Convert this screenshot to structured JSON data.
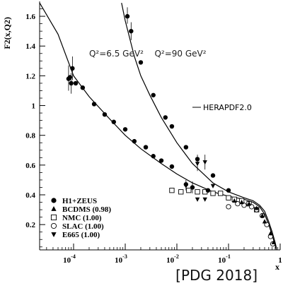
{
  "citation": "[PDG 2018]",
  "chart_data": {
    "type": "scatter",
    "ylabel": "F2(x,Q2)",
    "xlabel": "x",
    "x_scale": "log",
    "xlim": [
      2.2e-05,
      1.0
    ],
    "ylim": [
      0.03,
      1.7
    ],
    "x_ticks": [
      {
        "value": 0.0001,
        "base": "10",
        "exp": "-4"
      },
      {
        "value": 0.001,
        "base": "10",
        "exp": "-3"
      },
      {
        "value": 0.01,
        "base": "10",
        "exp": "-2"
      },
      {
        "value": 0.1,
        "base": "10",
        "exp": "-1"
      },
      {
        "value": 1,
        "base": "1",
        "exp": ""
      }
    ],
    "y_ticks": [
      0.2,
      0.4,
      0.6,
      0.8,
      1,
      1.2,
      1.4,
      1.6
    ],
    "y_tick_labels": [
      "0.2",
      "0.4",
      "0.6",
      "0.8",
      "1",
      "1.2",
      "1.4",
      "1.6"
    ],
    "annotations": [
      {
        "text": "Q²=6.5 GeV²",
        "x": 0.0002,
        "y": 1.33
      },
      {
        "text": "Q²=90 GeV²",
        "x": 0.0037,
        "y": 1.33
      }
    ],
    "curves": [
      {
        "name": "HERAPDF2.0",
        "legend_label": "HERAPDF2.0",
        "points": [
          [
            2.2e-05,
            1.69
          ],
          [
            5e-05,
            1.48
          ],
          [
            0.0001,
            1.2
          ],
          [
            0.0002,
            1.06
          ],
          [
            0.0005,
            0.91
          ],
          [
            0.001,
            0.8
          ],
          [
            0.002,
            0.71
          ],
          [
            0.005,
            0.61
          ],
          [
            0.01,
            0.54
          ],
          [
            0.02,
            0.48
          ],
          [
            0.05,
            0.42
          ],
          [
            0.1,
            0.39
          ],
          [
            0.2,
            0.37
          ],
          [
            0.3,
            0.35
          ],
          [
            0.4,
            0.32
          ],
          [
            0.5,
            0.27
          ],
          [
            0.6,
            0.2
          ],
          [
            0.7,
            0.13
          ],
          [
            0.8,
            0.06
          ],
          [
            0.85,
            0.03
          ]
        ]
      },
      {
        "name": "HERAPDF2.0",
        "legend_label": "",
        "points": [
          [
            0.00085,
            1.69
          ],
          [
            0.001,
            1.57
          ],
          [
            0.0015,
            1.33
          ],
          [
            0.002,
            1.2
          ],
          [
            0.003,
            1.07
          ],
          [
            0.005,
            0.92
          ],
          [
            0.01,
            0.75
          ],
          [
            0.02,
            0.61
          ],
          [
            0.05,
            0.48
          ],
          [
            0.1,
            0.42
          ],
          [
            0.2,
            0.38
          ],
          [
            0.3,
            0.36
          ],
          [
            0.4,
            0.33
          ],
          [
            0.5,
            0.29
          ],
          [
            0.6,
            0.22
          ],
          [
            0.7,
            0.15
          ],
          [
            0.8,
            0.08
          ],
          [
            0.85,
            0.04
          ]
        ]
      }
    ],
    "series": [
      {
        "name": "H1+ZEUS",
        "marker": "circle-filled",
        "points": [
          [
            8e-05,
            1.18
          ],
          [
            8.5e-05,
            1.19
          ],
          [
            9e-05,
            1.15
          ],
          [
            9.5e-05,
            1.25
          ],
          [
            0.00011,
            1.15
          ],
          [
            0.00015,
            1.12
          ],
          [
            0.00025,
            1.01
          ],
          [
            0.0004,
            0.94
          ],
          [
            0.0006,
            0.89
          ],
          [
            0.001,
            0.84
          ],
          [
            0.0015,
            0.76
          ],
          [
            0.0025,
            0.72
          ],
          [
            0.0035,
            0.66
          ],
          [
            0.005,
            0.63
          ],
          [
            0.008,
            0.59
          ],
          [
            0.015,
            0.47
          ],
          [
            0.02,
            0.45
          ],
          [
            0.04,
            0.43
          ],
          [
            0.1,
            0.43
          ],
          [
            0.0011,
            1.6
          ],
          [
            0.0013,
            1.5
          ],
          [
            0.002,
            1.29
          ],
          [
            0.0035,
            1.07
          ],
          [
            0.006,
            0.92
          ],
          [
            0.008,
            0.86
          ],
          [
            0.015,
            0.72
          ],
          [
            0.025,
            0.64
          ],
          [
            0.05,
            0.53
          ]
        ]
      },
      {
        "name": "BCDMS (0.98)",
        "marker": "triangle-up-filled",
        "points": [
          [
            0.13,
            0.36
          ],
          [
            0.18,
            0.35
          ],
          [
            0.25,
            0.34
          ],
          [
            0.35,
            0.31
          ],
          [
            0.45,
            0.26
          ],
          [
            0.5,
            0.22
          ],
          [
            0.65,
            0.14
          ],
          [
            0.75,
            0.08
          ]
        ]
      },
      {
        "name": "NMC (1.00)",
        "marker": "square-open",
        "points": [
          [
            0.008,
            0.43
          ],
          [
            0.012,
            0.42
          ],
          [
            0.017,
            0.43
          ],
          [
            0.025,
            0.42
          ],
          [
            0.035,
            0.42
          ],
          [
            0.05,
            0.41
          ],
          [
            0.07,
            0.41
          ],
          [
            0.1,
            0.38
          ],
          [
            0.13,
            0.37
          ],
          [
            0.18,
            0.36
          ],
          [
            0.25,
            0.34
          ],
          [
            0.35,
            0.3
          ]
        ]
      },
      {
        "name": "SLAC (1.00)",
        "marker": "circle-open",
        "points": [
          [
            0.1,
            0.32
          ],
          [
            0.15,
            0.34
          ],
          [
            0.2,
            0.33
          ],
          [
            0.28,
            0.32
          ],
          [
            0.35,
            0.3
          ],
          [
            0.45,
            0.26
          ],
          [
            0.55,
            0.2
          ],
          [
            0.65,
            0.12
          ],
          [
            0.72,
            0.07
          ]
        ]
      },
      {
        "name": "E665 (1.00)",
        "marker": "triangle-down-filled",
        "points": [
          [
            0.015,
            0.46
          ],
          [
            0.025,
            0.37
          ],
          [
            0.035,
            0.37
          ],
          [
            0.05,
            0.46
          ],
          [
            0.025,
            0.61
          ],
          [
            0.035,
            0.62
          ]
        ]
      }
    ],
    "error_bars": [
      [
        8e-05,
        1.1,
        1.27
      ],
      [
        9.5e-05,
        1.17,
        1.33
      ],
      [
        9e-05,
        1.08,
        1.22
      ],
      [
        0.0011,
        1.55,
        1.66
      ],
      [
        0.0013,
        1.44,
        1.56
      ],
      [
        0.025,
        0.56,
        0.67
      ],
      [
        0.035,
        0.57,
        0.67
      ],
      [
        0.015,
        0.43,
        0.5
      ],
      [
        0.02,
        0.41,
        0.49
      ]
    ]
  }
}
